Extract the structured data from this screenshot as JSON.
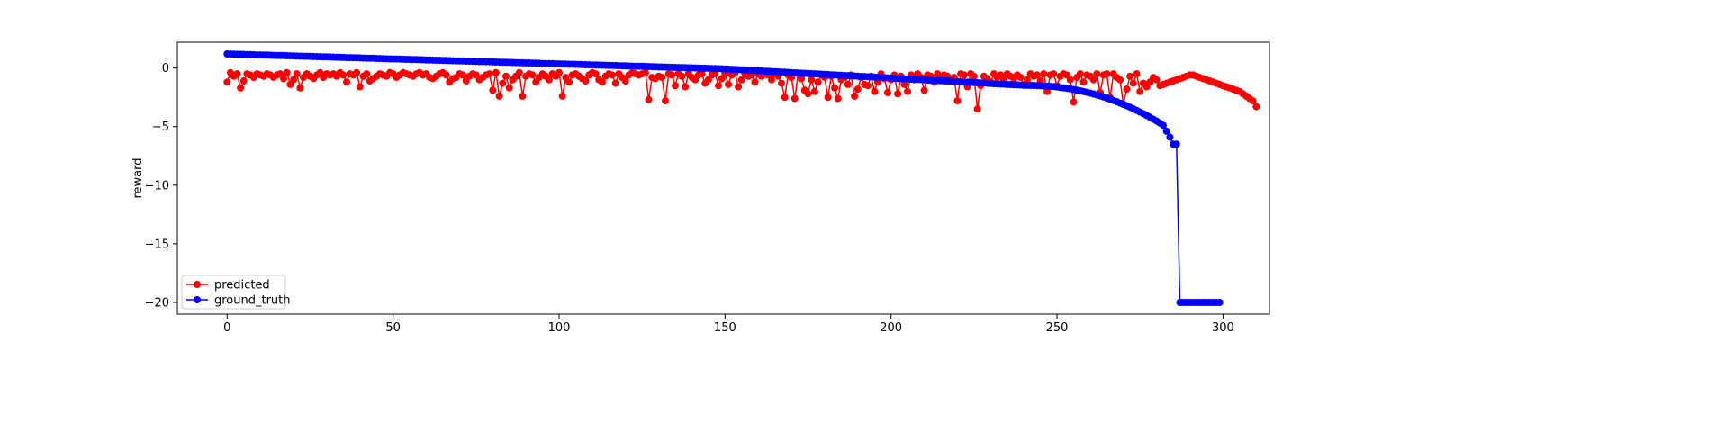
{
  "chart_data": {
    "type": "line",
    "title": "",
    "xlabel": "",
    "ylabel": "reward",
    "xlim": [
      -15,
      314
    ],
    "ylim": [
      -21,
      2.2
    ],
    "xticks": [
      0,
      50,
      100,
      150,
      200,
      250,
      300
    ],
    "yticks": [
      0,
      -5,
      -10,
      -15,
      -20
    ],
    "ytick_labels": [
      "0",
      "−5",
      "−10",
      "−15",
      "−20"
    ],
    "grid": false,
    "legend_position": "lower-left",
    "series": [
      {
        "name": "predicted",
        "color": "#ff0000",
        "marker": "circle",
        "values": [
          -1.2,
          -0.4,
          -0.7,
          -0.5,
          -1.7,
          -1.1,
          -0.5,
          -0.6,
          -0.8,
          -0.5,
          -0.6,
          -0.7,
          -0.5,
          -0.6,
          -0.8,
          -0.6,
          -0.5,
          -0.9,
          -0.4,
          -1.4,
          -1.0,
          -0.5,
          -1.7,
          -0.8,
          -0.5,
          -0.7,
          -0.9,
          -0.6,
          -0.4,
          -0.8,
          -0.5,
          -0.6,
          -0.5,
          -0.7,
          -0.4,
          -0.6,
          -1.2,
          -0.5,
          -0.6,
          -0.4,
          -1.6,
          -0.7,
          -0.5,
          -1.1,
          -0.9,
          -0.7,
          -0.5,
          -0.6,
          -0.7,
          -0.4,
          -0.5,
          -0.8,
          -0.6,
          -0.4,
          -0.5,
          -0.6,
          -0.7,
          -0.5,
          -0.4,
          -0.6,
          -0.5,
          -0.8,
          -0.9,
          -0.7,
          -0.5,
          -0.4,
          -0.6,
          -1.2,
          -0.9,
          -0.8,
          -0.5,
          -0.6,
          -1.1,
          -0.7,
          -0.5,
          -0.6,
          -1.0,
          -0.8,
          -0.6,
          -0.5,
          -1.9,
          -0.4,
          -2.4,
          -1.3,
          -0.7,
          -1.7,
          -1.0,
          -0.7,
          -0.4,
          -2.4,
          -0.7,
          -0.5,
          -0.6,
          -1.2,
          -0.8,
          -0.5,
          -0.7,
          -1.0,
          -0.5,
          -0.7,
          -0.4,
          -2.4,
          -0.8,
          -1.2,
          -0.6,
          -0.5,
          -0.7,
          -0.9,
          -1.1,
          -0.6,
          -0.4,
          -0.5,
          -1.0,
          -1.2,
          -0.7,
          -0.5,
          -0.6,
          -1.3,
          -0.5,
          -0.8,
          -1.1,
          -0.6,
          -0.4,
          -0.5,
          -0.6,
          -0.5,
          -0.4,
          -2.7,
          -0.8,
          -0.9,
          -0.7,
          -0.8,
          -2.8,
          -0.5,
          -0.6,
          -1.5,
          -0.5,
          -0.7,
          -1.6,
          -0.5,
          -0.8,
          -1.0,
          -0.6,
          -0.5,
          -1.3,
          -1.0,
          -0.6,
          -0.5,
          -1.5,
          -0.9,
          -0.5,
          -1.4,
          -0.6,
          -0.4,
          -1.6,
          -1.0,
          -0.5,
          -0.7,
          -0.6,
          -1.2,
          -0.5,
          -0.7,
          -0.4,
          -0.6,
          -1.0,
          -0.5,
          -0.7,
          -1.3,
          -2.5,
          -0.6,
          -0.8,
          -2.6,
          -0.5,
          -0.9,
          -1.9,
          -2.2,
          -1.0,
          -2.0,
          -1.2,
          -0.6,
          -0.8,
          -2.5,
          -0.7,
          -1.7,
          -2.6,
          -1.0,
          -0.8,
          -1.4,
          -0.6,
          -2.4,
          -1.8,
          -0.8,
          -1.4,
          -1.5,
          -0.7,
          -2.0,
          -1.2,
          -0.5,
          -0.9,
          -2.1,
          -1.0,
          -0.6,
          -2.2,
          -0.7,
          -1.4,
          -2.0,
          -0.6,
          -1.0,
          -0.5,
          -0.8,
          -1.9,
          -0.6,
          -0.7,
          -1.2,
          -0.5,
          -0.9,
          -0.6,
          -0.7,
          -1.0,
          -0.8,
          -2.8,
          -0.5,
          -0.6,
          -1.6,
          -0.5,
          -0.7,
          -3.5,
          -1.5,
          -0.7,
          -0.9,
          -1.2,
          -0.5,
          -0.8,
          -0.6,
          -1.0,
          -0.5,
          -0.7,
          -0.9,
          -0.6,
          -0.8,
          -1.4,
          -1.0,
          -0.5,
          -0.7,
          -0.6,
          -1.1,
          -0.5,
          -2.0,
          -0.6,
          -0.5,
          -1.5,
          -0.7,
          -0.5,
          -0.6,
          -1.0,
          -2.9,
          -0.8,
          -0.5,
          -1.2,
          -0.6,
          -0.7,
          -1.0,
          -0.5,
          -2.1,
          -0.6,
          -0.5,
          -2.5,
          -0.5,
          -0.8,
          -1.0,
          -3.1,
          -1.8,
          -0.7,
          -1.3,
          -0.5,
          -2.0,
          -1.3,
          -1.6,
          -1.2,
          -0.8,
          -1.0,
          -1.5,
          -1.4,
          -1.3,
          -1.2,
          -1.1,
          -1.0,
          -0.9,
          -0.8,
          -0.7,
          -0.6,
          -0.6,
          -0.7,
          -0.8,
          -0.9,
          -1.0,
          -1.1,
          -1.2,
          -1.3,
          -1.4,
          -1.5,
          -1.6,
          -1.7,
          -1.8,
          -1.9,
          -2.0,
          -2.2,
          -2.4,
          -2.6,
          -2.8,
          -3.3
        ]
      },
      {
        "name": "ground_truth",
        "color": "#0000ff",
        "marker": "circle",
        "values": []
      }
    ]
  }
}
